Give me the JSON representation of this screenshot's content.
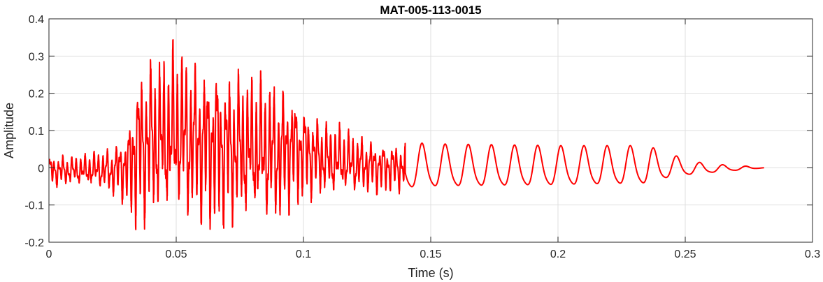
{
  "chart_data": {
    "type": "line",
    "title": "MAT-005-113-0015",
    "xlabel": "Time (s)",
    "ylabel": "Amplitude",
    "xlim": [
      0,
      0.3
    ],
    "ylim": [
      -0.2,
      0.4
    ],
    "xticks": [
      0,
      0.05,
      0.1,
      0.15,
      0.2,
      0.25,
      0.3
    ],
    "xtick_labels": [
      "0",
      "0.05",
      "0.1",
      "0.15",
      "0.2",
      "0.25",
      "0.3"
    ],
    "yticks": [
      -0.2,
      -0.1,
      0,
      0.1,
      0.2,
      0.3,
      0.4
    ],
    "ytick_labels": [
      "-0.2",
      "-0.1",
      "0",
      "0.1",
      "0.2",
      "0.3",
      "0.4"
    ],
    "grid": true,
    "box": true,
    "series": [
      {
        "color": "#ff0000",
        "x_end": 0.281,
        "envelope_points": [
          [
            0.0,
            -0.055,
            0.04
          ],
          [
            0.01,
            -0.05,
            0.035
          ],
          [
            0.02,
            -0.06,
            0.05
          ],
          [
            0.025,
            -0.08,
            0.06
          ],
          [
            0.028,
            -0.09,
            0.09
          ],
          [
            0.031,
            -0.12,
            0.12
          ],
          [
            0.034,
            -0.18,
            0.28
          ],
          [
            0.04,
            -0.17,
            0.32
          ],
          [
            0.045,
            -0.16,
            0.31
          ],
          [
            0.05,
            -0.16,
            0.355
          ],
          [
            0.055,
            -0.17,
            0.315
          ],
          [
            0.06,
            -0.17,
            0.3
          ],
          [
            0.065,
            -0.185,
            0.31
          ],
          [
            0.07,
            -0.175,
            0.28
          ],
          [
            0.075,
            -0.17,
            0.27
          ],
          [
            0.08,
            -0.16,
            0.26
          ],
          [
            0.085,
            -0.17,
            0.26
          ],
          [
            0.09,
            -0.17,
            0.24
          ],
          [
            0.095,
            -0.12,
            0.23
          ],
          [
            0.1,
            -0.1,
            0.19
          ],
          [
            0.105,
            -0.09,
            0.15
          ],
          [
            0.11,
            -0.09,
            0.13
          ],
          [
            0.115,
            -0.08,
            0.12
          ],
          [
            0.12,
            -0.08,
            0.1
          ],
          [
            0.13,
            -0.075,
            0.08
          ],
          [
            0.14,
            -0.07,
            0.07
          ],
          [
            0.15,
            -0.065,
            0.065
          ],
          [
            0.2,
            -0.06,
            0.06
          ],
          [
            0.235,
            -0.055,
            0.06
          ],
          [
            0.245,
            -0.03,
            0.035
          ],
          [
            0.255,
            -0.02,
            0.015
          ],
          [
            0.265,
            -0.012,
            0.008
          ],
          [
            0.275,
            -0.005,
            0.004
          ],
          [
            0.281,
            0.0,
            0.0
          ]
        ]
      }
    ]
  }
}
